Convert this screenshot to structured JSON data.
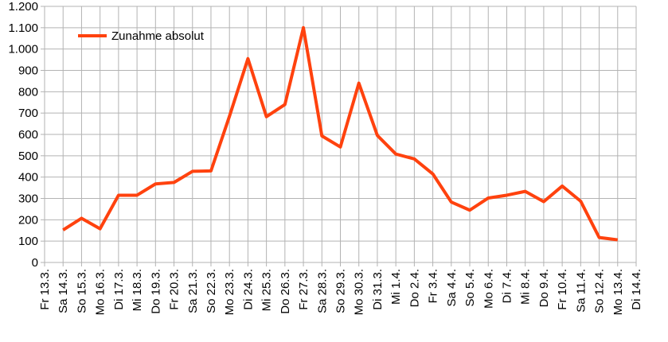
{
  "chart_data": {
    "type": "line",
    "title": "",
    "xlabel": "",
    "ylabel": "",
    "ylim": [
      0,
      1200
    ],
    "yticks": [
      0,
      100,
      200,
      300,
      400,
      500,
      600,
      700,
      800,
      900,
      1000,
      1100,
      1200
    ],
    "ytick_labels": [
      "0",
      "100",
      "200",
      "300",
      "400",
      "500",
      "600",
      "700",
      "800",
      "900",
      "1.000",
      "1.100",
      "1.200"
    ],
    "grid": true,
    "legend": "top-left",
    "categories": [
      "Fr 13.3.",
      "Sa 14.3.",
      "So 15.3.",
      "Mo 16.3.",
      "Di 17.3.",
      "Mi 18.3.",
      "Do 19.3.",
      "Fr 20.3.",
      "Sa 21.3.",
      "So 22.3.",
      "Mo 23.3.",
      "Di 24.3.",
      "Mi 25.3.",
      "Do 26.3.",
      "Fr 27.3.",
      "Sa 28.3.",
      "So 29.3.",
      "Mo 30.3.",
      "Di 31.3.",
      "Mi 1.4.",
      "Do 2.4.",
      "Fr 3.4.",
      "Sa 4.4.",
      "So 5.4.",
      "Mo 6.4.",
      "Di 7.4.",
      "Mi 8.4.",
      "Do 9.4.",
      "Fr 10.4.",
      "Sa 11.4.",
      "So 12.4.",
      "Mo 13.4.",
      "Di 14.4."
    ],
    "series": [
      {
        "name": "Zunahme absolut",
        "color": "#ff420e",
        "values": [
          null,
          152,
          207,
          158,
          315,
          315,
          368,
          375,
          427,
          429,
          685,
          955,
          683,
          740,
          1100,
          593,
          541,
          840,
          595,
          508,
          485,
          415,
          283,
          245,
          302,
          315,
          333,
          285,
          358,
          287,
          117,
          106,
          null
        ]
      }
    ]
  }
}
